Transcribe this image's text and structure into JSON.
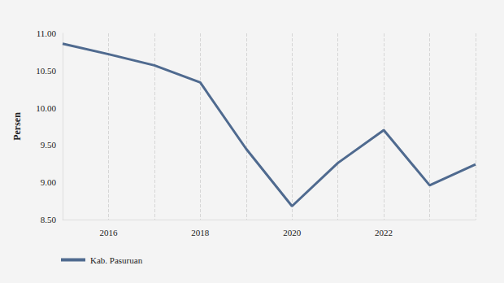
{
  "chart_data": {
    "type": "line",
    "y_label": "Persen",
    "categories": [
      null,
      "2016",
      null,
      "2018",
      null,
      "2020",
      null,
      "2022",
      null,
      null
    ],
    "series": [
      {
        "name": "Kab. Pasuruan",
        "color": "#4f6a8f",
        "values": [
          10.86,
          10.72,
          10.57,
          10.34,
          9.45,
          8.68,
          9.26,
          9.7,
          8.96,
          9.24
        ]
      }
    ],
    "ylim": [
      8.5,
      11
    ],
    "yticks": [
      {
        "value": 8.5,
        "label": "8.50"
      },
      {
        "value": 9,
        "label": "9.00"
      },
      {
        "value": 9.5,
        "label": "9.50"
      },
      {
        "value": 10,
        "label": "10.00"
      },
      {
        "value": 10.5,
        "label": "10.50"
      },
      {
        "value": 11,
        "label": "11.00"
      }
    ],
    "grid": true,
    "legend": "bottom-left"
  }
}
